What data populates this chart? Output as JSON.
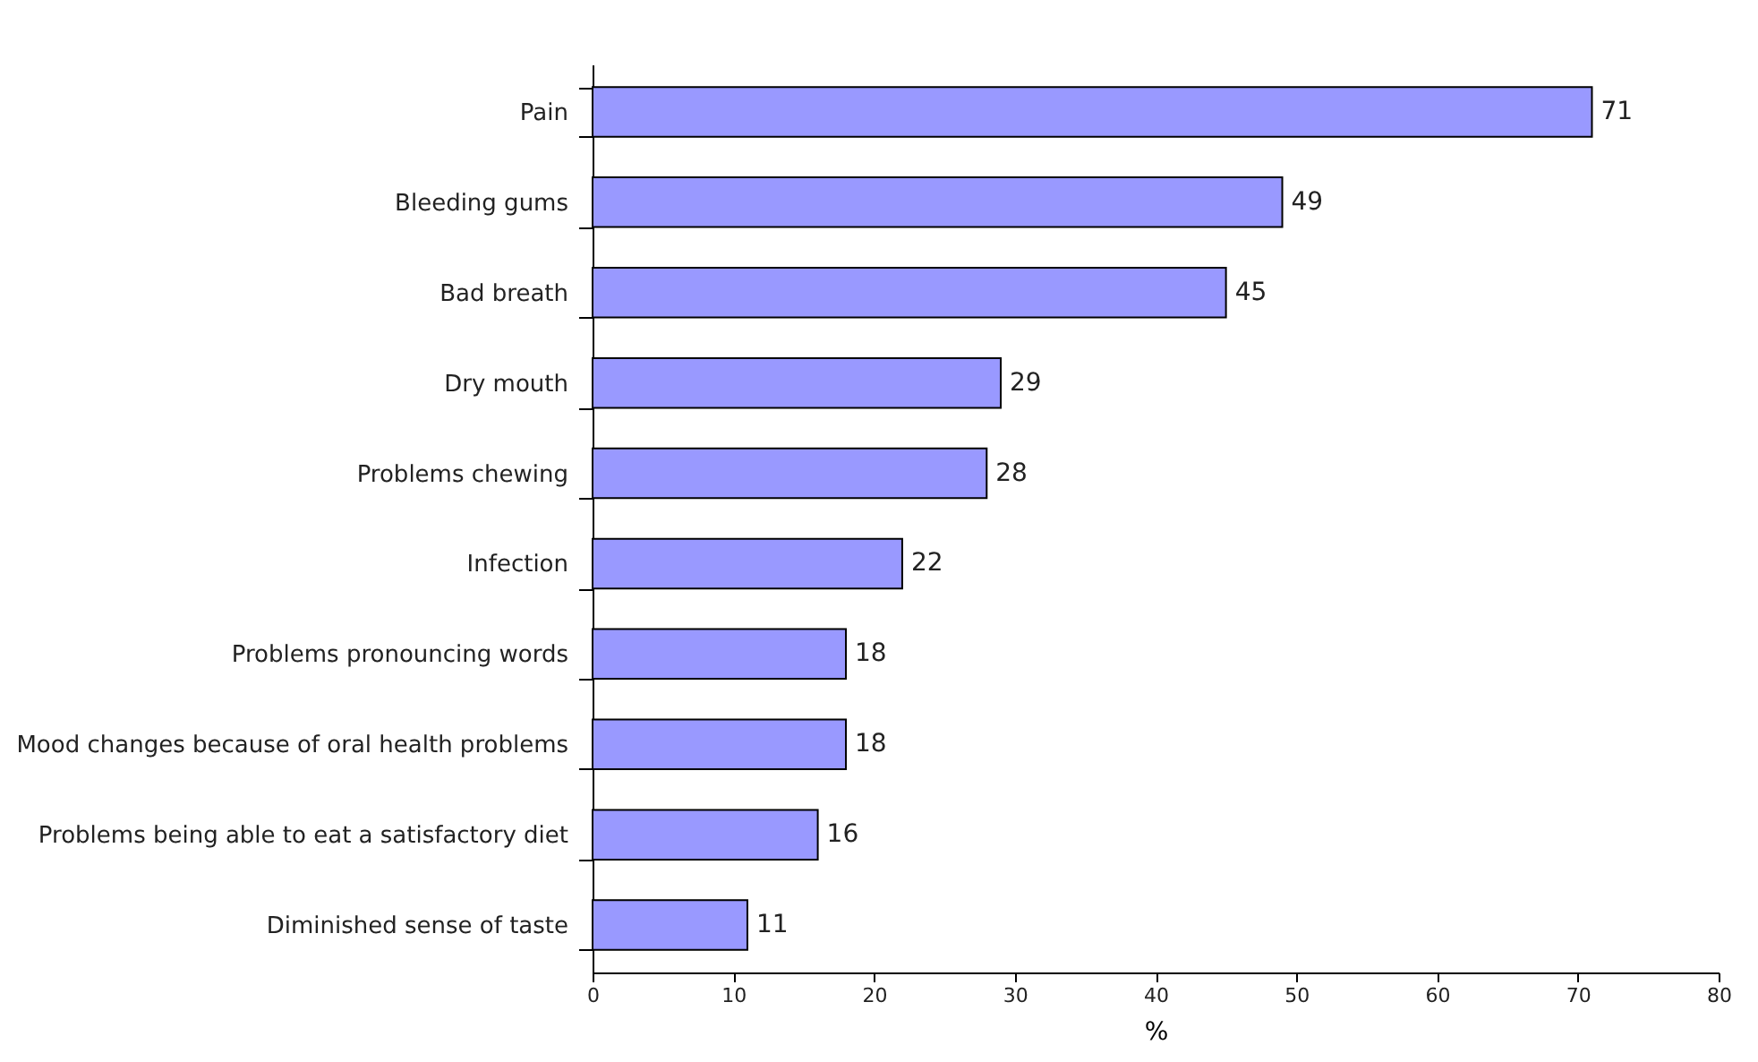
{
  "chart_data": {
    "type": "bar",
    "orientation": "horizontal",
    "xlabel": "%",
    "categories": [
      "Pain",
      "Bleeding gums",
      "Bad breath",
      "Dry mouth",
      "Problems chewing",
      "Infection",
      "Problems pronouncing words",
      "Mood changes because of oral health problems",
      "Problems being able to eat a satisfactory diet",
      "Diminished sense of taste"
    ],
    "values": [
      71,
      49,
      45,
      29,
      28,
      22,
      18,
      18,
      16,
      11
    ],
    "color": "#9999ff",
    "xlim": [
      0,
      80
    ],
    "xticks": [
      0,
      10,
      20,
      30,
      40,
      50,
      60,
      70,
      80
    ],
    "data_labels": true,
    "grid": false
  }
}
